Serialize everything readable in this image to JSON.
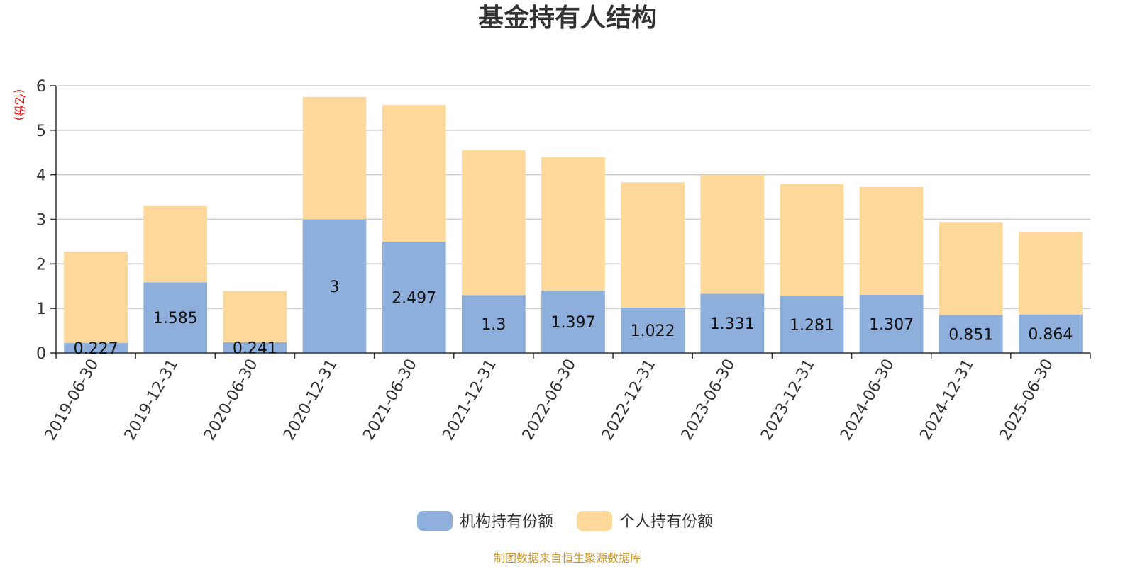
{
  "chart_data": {
    "type": "bar",
    "stacked": true,
    "title": "基金持有人结构",
    "unit_label": "(亿份)",
    "categories": [
      "2019-06-30",
      "2019-12-31",
      "2020-06-30",
      "2020-12-31",
      "2021-06-30",
      "2021-12-31",
      "2022-06-30",
      "2022-12-31",
      "2023-06-30",
      "2023-12-31",
      "2024-06-30",
      "2024-12-31",
      "2025-06-30"
    ],
    "series": [
      {
        "name": "机构持有份额",
        "color": "#8eaedb",
        "values": [
          0.227,
          1.585,
          0.241,
          3,
          2.497,
          1.3,
          1.397,
          1.022,
          1.331,
          1.281,
          1.307,
          0.851,
          0.864
        ],
        "labels": [
          "0.227",
          "1.585",
          "0.241",
          "3",
          "2.497",
          "1.3",
          "1.397",
          "1.022",
          "1.331",
          "1.281",
          "1.307",
          "0.851",
          "0.864"
        ]
      },
      {
        "name": "个人持有份额",
        "color": "#fed89a",
        "values": [
          2.05,
          1.72,
          1.15,
          2.75,
          3.07,
          3.25,
          3.0,
          2.81,
          2.67,
          2.51,
          2.42,
          2.09,
          1.85
        ]
      }
    ],
    "ylim": [
      0,
      6
    ],
    "yticks": [
      "0",
      "1",
      "2",
      "3",
      "4",
      "5",
      "6"
    ],
    "grid": true,
    "legend_position": "bottom-center",
    "source": "制图数据来自恒生聚源数据库"
  }
}
